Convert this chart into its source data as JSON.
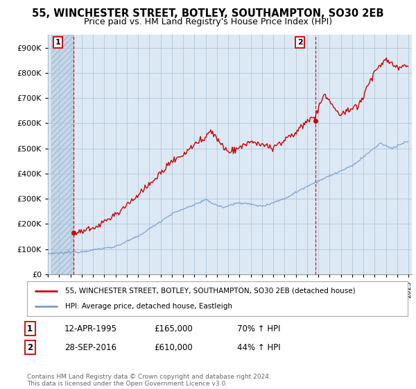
{
  "title": "55, WINCHESTER STREET, BOTLEY, SOUTHAMPTON, SO30 2EB",
  "subtitle": "Price paid vs. HM Land Registry's House Price Index (HPI)",
  "title_fontsize": 10.5,
  "subtitle_fontsize": 9,
  "ylim": [
    0,
    950000
  ],
  "yticks": [
    0,
    100000,
    200000,
    300000,
    400000,
    500000,
    600000,
    700000,
    800000,
    900000
  ],
  "ytick_labels": [
    "£0",
    "£100K",
    "£200K",
    "£300K",
    "£400K",
    "£500K",
    "£600K",
    "£700K",
    "£800K",
    "£900K"
  ],
  "xlim_start": 1993.3,
  "xlim_end": 2025.3,
  "sale1_x": 1995.28,
  "sale1_y": 165000,
  "sale1_label": "1",
  "sale1_date": "12-APR-1995",
  "sale1_price": "£165,000",
  "sale1_hpi": "70% ↑ HPI",
  "sale2_x": 2016.74,
  "sale2_y": 610000,
  "sale2_label": "2",
  "sale2_date": "28-SEP-2016",
  "sale2_price": "£610,000",
  "sale2_hpi": "44% ↑ HPI",
  "line_color_property": "#cc0000",
  "line_color_hpi": "#7799cc",
  "vline_color": "#cc0000",
  "background_color": "#dce9f5",
  "hatch_color": "#c5d8ea",
  "grid_color": "#b0c4d8",
  "legend_label_property": "55, WINCHESTER STREET, BOTLEY, SOUTHAMPTON, SO30 2EB (detached house)",
  "legend_label_hpi": "HPI: Average price, detached house, Eastleigh",
  "footer": "Contains HM Land Registry data © Crown copyright and database right 2024.\nThis data is licensed under the Open Government Licence v3.0.",
  "hpi_seed": 12345,
  "prop_seed": 67890
}
